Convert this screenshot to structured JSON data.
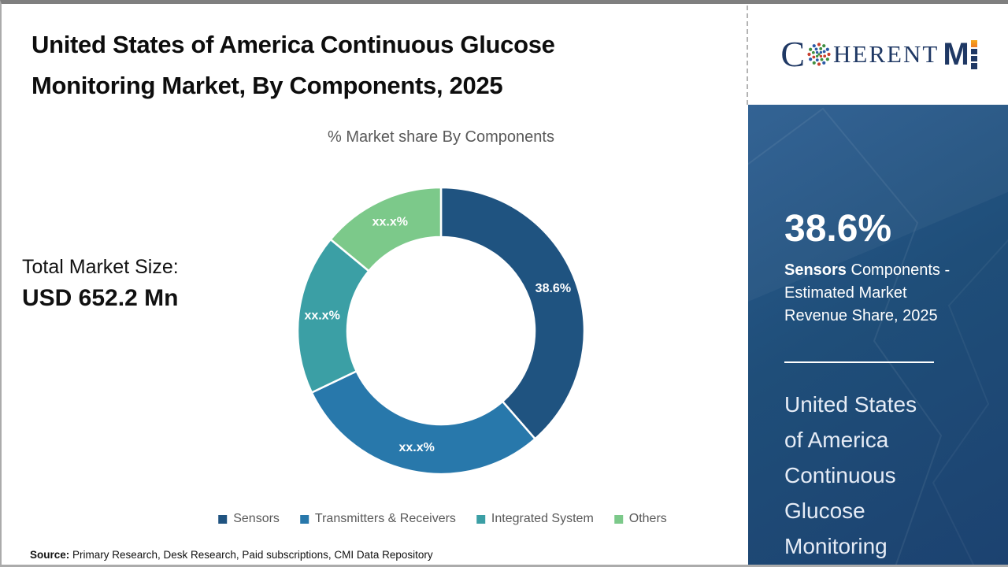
{
  "header": {
    "title_line1": "United States of America Continuous Glucose",
    "title_line2": "Monitoring Market, By Components, 2025"
  },
  "logo": {
    "part1": "C",
    "part2": "HERENT",
    "part3": "M"
  },
  "stats": {
    "total_label": "Total Market Size:",
    "total_value": "USD 652.2 Mn"
  },
  "chart_data": {
    "type": "pie",
    "subtype": "donut",
    "title": "% Market share By Components",
    "categories": [
      "Sensors",
      "Transmitters & Receivers",
      "Integrated System",
      "Others"
    ],
    "values": [
      38.6,
      29.3,
      18.1,
      14.0
    ],
    "displayed_labels": [
      "38.6%",
      "xx.x%",
      "xx.x%",
      "xx.x%"
    ],
    "colors": [
      "#1f5380",
      "#2878ab",
      "#3b9fa5",
      "#7cc98a"
    ],
    "legend_position": "bottom",
    "start_angle_deg": 0,
    "direction": "clockwise"
  },
  "sidebar": {
    "stat_value": "38.6%",
    "desc_bold": "Sensors",
    "desc_rest": " Components - Estimated Market Revenue Share, 2025",
    "headline_lines": [
      "United States",
      "of America",
      "Continuous",
      "Glucose",
      "Monitoring"
    ]
  },
  "footer": {
    "source_label": "Source:",
    "source_text": " Primary Research, Desk Research, Paid subscriptions, CMI Data Repository"
  },
  "colors": {
    "panel_navy": "#1f4e79",
    "logo_navy": "#1f3864",
    "logo_orange": "#ee7c23",
    "title_black": "#0d0d0d",
    "muted_gray": "#595959"
  }
}
